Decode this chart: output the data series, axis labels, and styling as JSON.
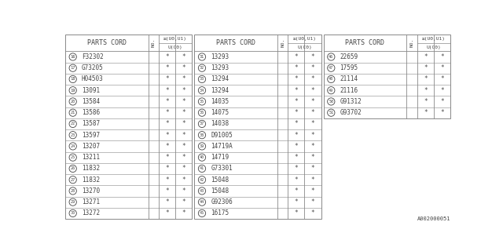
{
  "bg_color": "#ffffff",
  "border_color": "#888888",
  "text_color": "#444444",
  "font_size": 5.5,
  "title_font_size": 6.0,
  "header_font_size": 4.5,
  "footnote": "A002000051",
  "col_header": "PARTS CORD",
  "tables": [
    {
      "rows": [
        {
          "num": 16,
          "part": "F32302"
        },
        {
          "num": 17,
          "part": "G73205"
        },
        {
          "num": 18,
          "part": "H04503"
        },
        {
          "num": 19,
          "part": "13091"
        },
        {
          "num": 20,
          "part": "13584"
        },
        {
          "num": 21,
          "part": "13586"
        },
        {
          "num": 22,
          "part": "13587"
        },
        {
          "num": 23,
          "part": "13597"
        },
        {
          "num": 24,
          "part": "13207"
        },
        {
          "num": 25,
          "part": "13211"
        },
        {
          "num": 26,
          "part": "11832"
        },
        {
          "num": 27,
          "part": "11832"
        },
        {
          "num": 28,
          "part": "13270"
        },
        {
          "num": 29,
          "part": "13271"
        },
        {
          "num": 30,
          "part": "13272"
        }
      ]
    },
    {
      "rows": [
        {
          "num": 31,
          "part": "13293"
        },
        {
          "num": 32,
          "part": "13293"
        },
        {
          "num": 33,
          "part": "13294"
        },
        {
          "num": 34,
          "part": "13294"
        },
        {
          "num": 35,
          "part": "14035"
        },
        {
          "num": 36,
          "part": "14075"
        },
        {
          "num": 37,
          "part": "14038"
        },
        {
          "num": 38,
          "part": "D91005"
        },
        {
          "num": 39,
          "part": "14719A"
        },
        {
          "num": 40,
          "part": "14719"
        },
        {
          "num": 41,
          "part": "G73301"
        },
        {
          "num": 42,
          "part": "15048"
        },
        {
          "num": 43,
          "part": "15048"
        },
        {
          "num": 44,
          "part": "G92306"
        },
        {
          "num": 45,
          "part": "16175"
        }
      ]
    },
    {
      "rows": [
        {
          "num": 46,
          "part": "22659"
        },
        {
          "num": 47,
          "part": "17595"
        },
        {
          "num": 48,
          "part": "21114"
        },
        {
          "num": 49,
          "part": "21116"
        },
        {
          "num": 50,
          "part": "G91312"
        },
        {
          "num": 51,
          "part": "G93702"
        }
      ]
    }
  ]
}
